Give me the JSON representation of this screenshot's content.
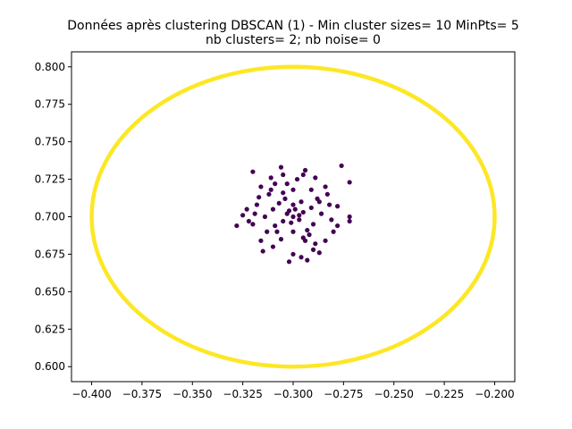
{
  "chart_data": {
    "type": "scatter",
    "title": [
      "Données après clustering DBSCAN (1) - Min cluster sizes= 10 MinPts= 5",
      "nb clusters= 2; nb noise= 0"
    ],
    "xlabel": "",
    "ylabel": "",
    "xlim": [
      -0.41,
      -0.19
    ],
    "ylim": [
      0.59,
      0.81
    ],
    "x_ticks": [
      -0.4,
      -0.375,
      -0.35,
      -0.325,
      -0.3,
      -0.275,
      -0.25,
      -0.225,
      -0.2
    ],
    "x_tick_labels": [
      "−0.400",
      "−0.375",
      "−0.350",
      "−0.325",
      "−0.300",
      "−0.275",
      "−0.250",
      "−0.225",
      "−0.200"
    ],
    "y_ticks": [
      0.6,
      0.625,
      0.65,
      0.675,
      0.7,
      0.725,
      0.75,
      0.775,
      0.8
    ],
    "y_tick_labels": [
      "0.600",
      "0.625",
      "0.650",
      "0.675",
      "0.700",
      "0.725",
      "0.750",
      "0.775",
      "0.800"
    ],
    "grid": false,
    "legend": "none",
    "series": [
      {
        "color": "#440154",
        "shape": "gaussian blob",
        "center": [
          -0.3,
          0.7
        ],
        "x_range": [
          -0.328,
          -0.272
        ],
        "y_range": [
          0.67,
          0.734
        ],
        "points": [
          [
            -0.3,
            0.7
          ],
          [
            -0.302,
            0.704
          ],
          [
            -0.297,
            0.698
          ],
          [
            -0.305,
            0.697
          ],
          [
            -0.295,
            0.703
          ],
          [
            -0.3,
            0.708
          ],
          [
            -0.304,
            0.712
          ],
          [
            -0.296,
            0.71
          ],
          [
            -0.31,
            0.705
          ],
          [
            -0.29,
            0.695
          ],
          [
            -0.308,
            0.69
          ],
          [
            -0.292,
            0.688
          ],
          [
            -0.3,
            0.69
          ],
          [
            -0.3,
            0.718
          ],
          [
            -0.312,
            0.715
          ],
          [
            -0.288,
            0.712
          ],
          [
            -0.314,
            0.7
          ],
          [
            -0.286,
            0.702
          ],
          [
            -0.306,
            0.685
          ],
          [
            -0.294,
            0.684
          ],
          [
            -0.303,
            0.722
          ],
          [
            -0.298,
            0.725
          ],
          [
            -0.316,
            0.72
          ],
          [
            -0.284,
            0.72
          ],
          [
            -0.318,
            0.708
          ],
          [
            -0.282,
            0.708
          ],
          [
            -0.32,
            0.695
          ],
          [
            -0.28,
            0.69
          ],
          [
            -0.31,
            0.68
          ],
          [
            -0.29,
            0.678
          ],
          [
            -0.3,
            0.675
          ],
          [
            -0.305,
            0.728
          ],
          [
            -0.295,
            0.728
          ],
          [
            -0.325,
            0.701
          ],
          [
            -0.322,
            0.697
          ],
          [
            -0.32,
            0.73
          ],
          [
            -0.276,
            0.734
          ],
          [
            -0.272,
            0.723
          ],
          [
            -0.272,
            0.7
          ],
          [
            -0.272,
            0.697
          ],
          [
            -0.328,
            0.694
          ],
          [
            -0.316,
            0.684
          ],
          [
            -0.284,
            0.684
          ],
          [
            -0.315,
            0.677
          ],
          [
            -0.287,
            0.676
          ],
          [
            -0.302,
            0.67
          ],
          [
            -0.296,
            0.673
          ],
          [
            -0.293,
            0.671
          ],
          [
            -0.311,
            0.726
          ],
          [
            -0.289,
            0.726
          ],
          [
            -0.306,
            0.733
          ],
          [
            -0.294,
            0.731
          ],
          [
            -0.283,
            0.715
          ],
          [
            -0.317,
            0.713
          ],
          [
            -0.278,
            0.707
          ],
          [
            -0.278,
            0.694
          ],
          [
            -0.323,
            0.705
          ],
          [
            -0.309,
            0.694
          ],
          [
            -0.291,
            0.706
          ],
          [
            -0.307,
            0.709
          ],
          [
            -0.293,
            0.691
          ],
          [
            -0.301,
            0.696
          ],
          [
            -0.299,
            0.705
          ],
          [
            -0.303,
            0.702
          ],
          [
            -0.297,
            0.701
          ],
          [
            -0.313,
            0.69
          ],
          [
            -0.287,
            0.71
          ],
          [
            -0.311,
            0.718
          ],
          [
            -0.289,
            0.682
          ],
          [
            -0.305,
            0.716
          ],
          [
            -0.295,
            0.686
          ],
          [
            -0.281,
            0.698
          ],
          [
            -0.319,
            0.702
          ],
          [
            -0.309,
            0.722
          ],
          [
            -0.291,
            0.718
          ]
        ]
      },
      {
        "color": "#fde725",
        "shape": "circle ring",
        "center": [
          -0.3,
          0.7
        ],
        "radius": 0.1,
        "x_range": [
          -0.4,
          -0.2
        ],
        "y_range": [
          0.6,
          0.8
        ]
      }
    ]
  }
}
